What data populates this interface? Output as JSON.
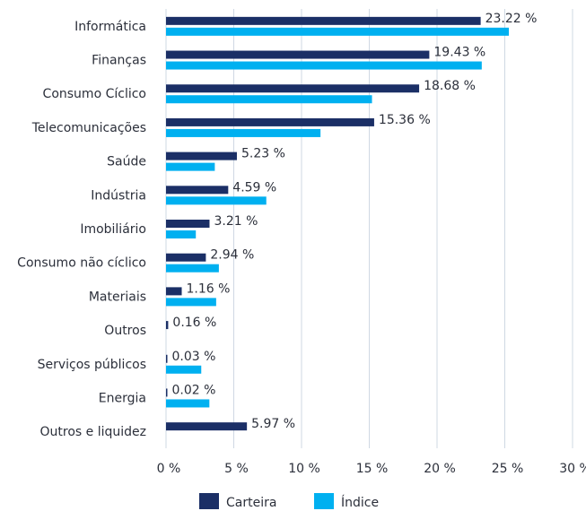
{
  "chart_data": {
    "type": "bar",
    "orientation": "horizontal",
    "categories": [
      "Informática",
      "Finanças",
      "Consumo Cíclico",
      "Telecomunicações",
      "Saúde",
      "Indústria",
      "Imobiliário",
      "Consumo não cíclico",
      "Materiais",
      "Outros",
      "Serviços públicos",
      "Energia",
      "Outros e liquidez"
    ],
    "series": [
      {
        "name": "Carteira",
        "color": "#1b2f66",
        "values": [
          23.22,
          19.43,
          18.68,
          15.36,
          5.23,
          4.59,
          3.21,
          2.94,
          1.16,
          0.16,
          0.03,
          0.02,
          5.97
        ],
        "value_labels": [
          "23.22 %",
          "19.43 %",
          "18.68 %",
          "15.36 %",
          "5.23 %",
          "4.59 %",
          "3.21 %",
          "2.94 %",
          "1.16 %",
          "0.16 %",
          "0.03 %",
          "0.02 %",
          "5.97 %"
        ]
      },
      {
        "name": "Índice",
        "color": "#00b0f0",
        "values": [
          25.3,
          23.3,
          15.2,
          11.4,
          3.6,
          7.4,
          2.2,
          3.9,
          3.7,
          null,
          2.6,
          3.2,
          null
        ]
      }
    ],
    "xlim": [
      0,
      30
    ],
    "xticks": [
      {
        "value": 0,
        "label": "0 %"
      },
      {
        "value": 5,
        "label": "5 %"
      },
      {
        "value": 10,
        "label": "10 %"
      },
      {
        "value": 15,
        "label": "15 %"
      },
      {
        "value": 20,
        "label": "20 %"
      },
      {
        "value": 25,
        "label": "25 %"
      },
      {
        "value": 30,
        "label": "30 %"
      }
    ],
    "grid": true,
    "legend": "bottom"
  }
}
